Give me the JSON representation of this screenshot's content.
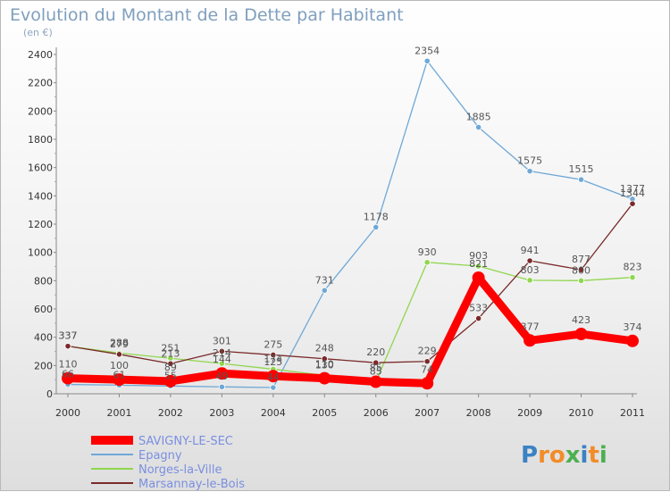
{
  "chart_data": {
    "type": "line",
    "title": "Evolution du Montant de la Dette par Habitant",
    "subtitle": "(en €)",
    "xlabel": "",
    "ylabel": "",
    "categories": [
      "2000",
      "2001",
      "2002",
      "2003",
      "2004",
      "2005",
      "2006",
      "2007",
      "2008",
      "2009",
      "2010",
      "2011"
    ],
    "ylim": [
      0,
      2400
    ],
    "yticks": [
      0,
      200,
      400,
      600,
      800,
      1000,
      1200,
      1400,
      1600,
      1800,
      2000,
      2200,
      2400
    ],
    "grid": false,
    "legend_position": "bottom-left",
    "series": [
      {
        "name": "SAVIGNY-LE-SEC",
        "color": "#ff0000",
        "values": [
          110,
          100,
          89,
          144,
          125,
          110,
          85,
          74,
          821,
          377,
          423,
          374
        ],
        "labels": [
          "110",
          "100",
          "89",
          "144",
          "125",
          "110",
          "85",
          "74",
          "821",
          "377",
          "423",
          "374"
        ]
      },
      {
        "name": "Epagny",
        "color": "#6fa8d6",
        "values": [
          66,
          61,
          55,
          49,
          44,
          731,
          1178,
          2354,
          1885,
          1575,
          1515,
          1377
        ],
        "labels": [
          "66",
          "61",
          "55",
          "49",
          "44",
          "731",
          "1178",
          "2354",
          "1885",
          "1575",
          "1515",
          "1377"
        ]
      },
      {
        "name": "Norges-la-Ville",
        "color": "#90d64e",
        "values": [
          337,
          288,
          251,
          214,
          174,
          130,
          85,
          930,
          903,
          803,
          800,
          823
        ],
        "labels": [
          "337",
          "288",
          "251",
          "214",
          "174",
          "130",
          "85",
          "930",
          "903",
          "803",
          "800",
          "823"
        ]
      },
      {
        "name": "Marsannay-le-Bois",
        "color": "#7a2a2a",
        "values": [
          337,
          279,
          213,
          301,
          275,
          248,
          220,
          229,
          533,
          941,
          877,
          1344
        ],
        "labels": [
          "337",
          "279",
          "213",
          "301",
          "275",
          "248",
          "220",
          "229",
          "533",
          "941",
          "877",
          "1344"
        ]
      }
    ]
  },
  "brand": {
    "name": "Proxiti",
    "letters": [
      "P",
      "r",
      "o",
      "x",
      "i",
      "t",
      "i"
    ],
    "colors": [
      "#3b82c4",
      "#f28c28",
      "#f28c28",
      "#4caf50",
      "#3b82c4",
      "#f28c28",
      "#4caf50"
    ]
  }
}
